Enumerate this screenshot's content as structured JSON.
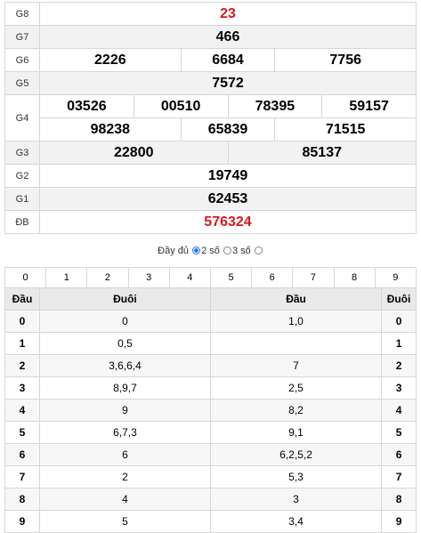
{
  "prizes": {
    "g8": {
      "label": "G8",
      "values": [
        "23"
      ]
    },
    "g7": {
      "label": "G7",
      "values": [
        "466"
      ]
    },
    "g6": {
      "label": "G6",
      "values": [
        "2226",
        "6684",
        "7756"
      ]
    },
    "g5": {
      "label": "G5",
      "values": [
        "7572"
      ]
    },
    "g4": {
      "label": "G4",
      "values": [
        "03526",
        "00510",
        "78395",
        "59157",
        "98238",
        "65839",
        "71515"
      ]
    },
    "g3": {
      "label": "G3",
      "values": [
        "22800",
        "85137"
      ]
    },
    "g2": {
      "label": "G2",
      "values": [
        "19749"
      ]
    },
    "g1": {
      "label": "G1",
      "values": [
        "62453"
      ]
    },
    "db": {
      "label": "ĐB",
      "values": [
        "576324"
      ]
    }
  },
  "options": {
    "full": "Đầy đủ",
    "two": "2 số",
    "three": "3 số",
    "selected": "2 số"
  },
  "digits": [
    "0",
    "1",
    "2",
    "3",
    "4",
    "5",
    "6",
    "7",
    "8",
    "9"
  ],
  "loto": {
    "headers": {
      "dau": "Đầu",
      "duoi": "Đuôi"
    },
    "rows": [
      {
        "head": "0",
        "duoi": "0",
        "dau": "1,0",
        "tail": "0"
      },
      {
        "head": "1",
        "duoi": "0,5",
        "dau": "",
        "tail": "1"
      },
      {
        "head": "2",
        "duoi": "3,6,6,4",
        "dau": "7",
        "tail": "2"
      },
      {
        "head": "3",
        "duoi": "8,9,7",
        "dau": "2,5",
        "tail": "3"
      },
      {
        "head": "4",
        "duoi": "9",
        "dau": "8,2",
        "tail": "4"
      },
      {
        "head": "5",
        "duoi": "6,7,3",
        "dau": "9,1",
        "tail": "5"
      },
      {
        "head": "6",
        "duoi": "6",
        "dau": "6,2,5,2",
        "tail": "6"
      },
      {
        "head": "7",
        "duoi": "2",
        "dau": "5,3",
        "tail": "7"
      },
      {
        "head": "8",
        "duoi": "4",
        "dau": "3",
        "tail": "8"
      },
      {
        "head": "9",
        "duoi": "5",
        "dau": "3,4",
        "tail": "9"
      }
    ]
  },
  "colors": {
    "accent_red": "#d71920"
  }
}
